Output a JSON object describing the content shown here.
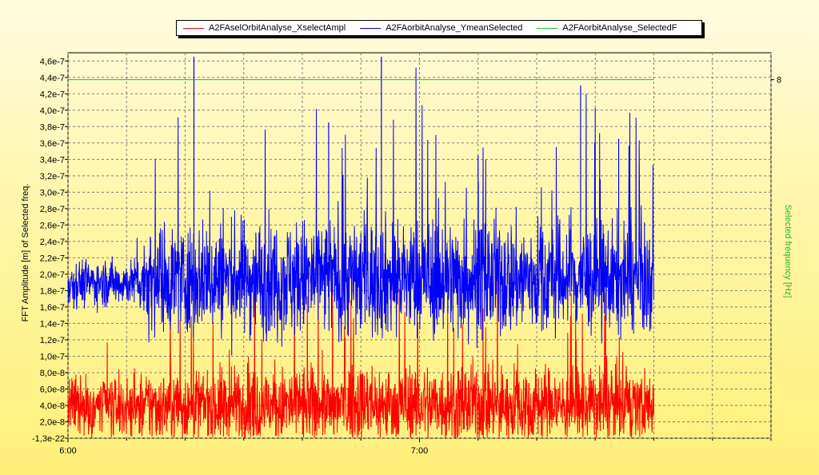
{
  "chart_data": {
    "type": "line",
    "title": "",
    "xlabel": "",
    "ylabel": "FFT Amplitude [m] of Selected freq.",
    "y2label": "Selected frequency [Hz]",
    "legend_position": "top",
    "grid": true,
    "x_ticks": [
      "6:00",
      "7:00"
    ],
    "x_range_minutes": [
      0,
      120
    ],
    "x_tick_minutes": [
      0,
      60
    ],
    "ylim": [
      -1.3e-22,
      4.7e-07
    ],
    "y_ticks": [
      "-1,3e-22",
      "2,0e-8",
      "4,0e-8",
      "6,0e-8",
      "8,0e-8",
      "1,0e-7",
      "1,2e-7",
      "1,4e-7",
      "1,6e-7",
      "1,8e-7",
      "2,0e-7",
      "2,2e-7",
      "2,4e-7",
      "2,6e-7",
      "2,8e-7",
      "3,0e-7",
      "3,2e-7",
      "3,4e-7",
      "3,6e-7",
      "3,8e-7",
      "4,0e-7",
      "4,2e-7",
      "4,4e-7",
      "4,6e-7"
    ],
    "y_tick_values": [
      0,
      2e-08,
      4e-08,
      6e-08,
      8e-08,
      1e-07,
      1.2e-07,
      1.4e-07,
      1.6e-07,
      1.8e-07,
      2e-07,
      2.2e-07,
      2.4e-07,
      2.6e-07,
      2.8e-07,
      3e-07,
      3.2e-07,
      3.4e-07,
      3.6e-07,
      3.8e-07,
      4e-07,
      4.2e-07,
      4.4e-07,
      4.6e-07
    ],
    "y2_ticks": [
      "8"
    ],
    "y2_tick_values": [
      8
    ],
    "y2lim": [
      0,
      8.6
    ],
    "series": [
      {
        "name": "A2FAselOrbitAnalyse_XselectAmpl",
        "color": "#ff0000",
        "axis": "left",
        "x": [
          0,
          12,
          14,
          40,
          65,
          90,
          98,
          100
        ],
        "mean": [
          3.8e-08,
          3.8e-08,
          4e-08,
          4e-08,
          4.2e-08,
          4e-08,
          4e-08,
          4e-08
        ],
        "spread": [
          4.5e-08,
          4.5e-08,
          5.5e-08,
          6e-08,
          6e-08,
          5.5e-08,
          5.5e-08,
          5e-08
        ]
      },
      {
        "name": "A2FAorbitAnalyse_YmeanSelected",
        "color": "#0000ff",
        "axis": "left",
        "x": [
          0,
          12,
          13.5,
          40,
          65,
          90,
          100
        ],
        "mean": [
          1.9e-07,
          1.9e-07,
          1.95e-07,
          1.95e-07,
          1.95e-07,
          1.95e-07,
          1.9e-07
        ],
        "spread": [
          3.5e-08,
          3.5e-08,
          8e-08,
          9e-08,
          9e-08,
          8.5e-08,
          8e-08
        ],
        "peaks": [
          {
            "x": 21.5,
            "y": 4.65e-07
          },
          {
            "x": 44.5,
            "y": 3.85e-07
          },
          {
            "x": 53.5,
            "y": 4.65e-07
          },
          {
            "x": 70,
            "y": 3.45e-07
          },
          {
            "x": 87.5,
            "y": 4.3e-07
          },
          {
            "x": 94,
            "y": 3.65e-07
          }
        ]
      },
      {
        "name": "A2FAorbitAnalyse_SelectedF",
        "color": "#22c022",
        "axis": "right",
        "x": [
          0,
          100
        ],
        "values": [
          8,
          8
        ]
      }
    ]
  }
}
